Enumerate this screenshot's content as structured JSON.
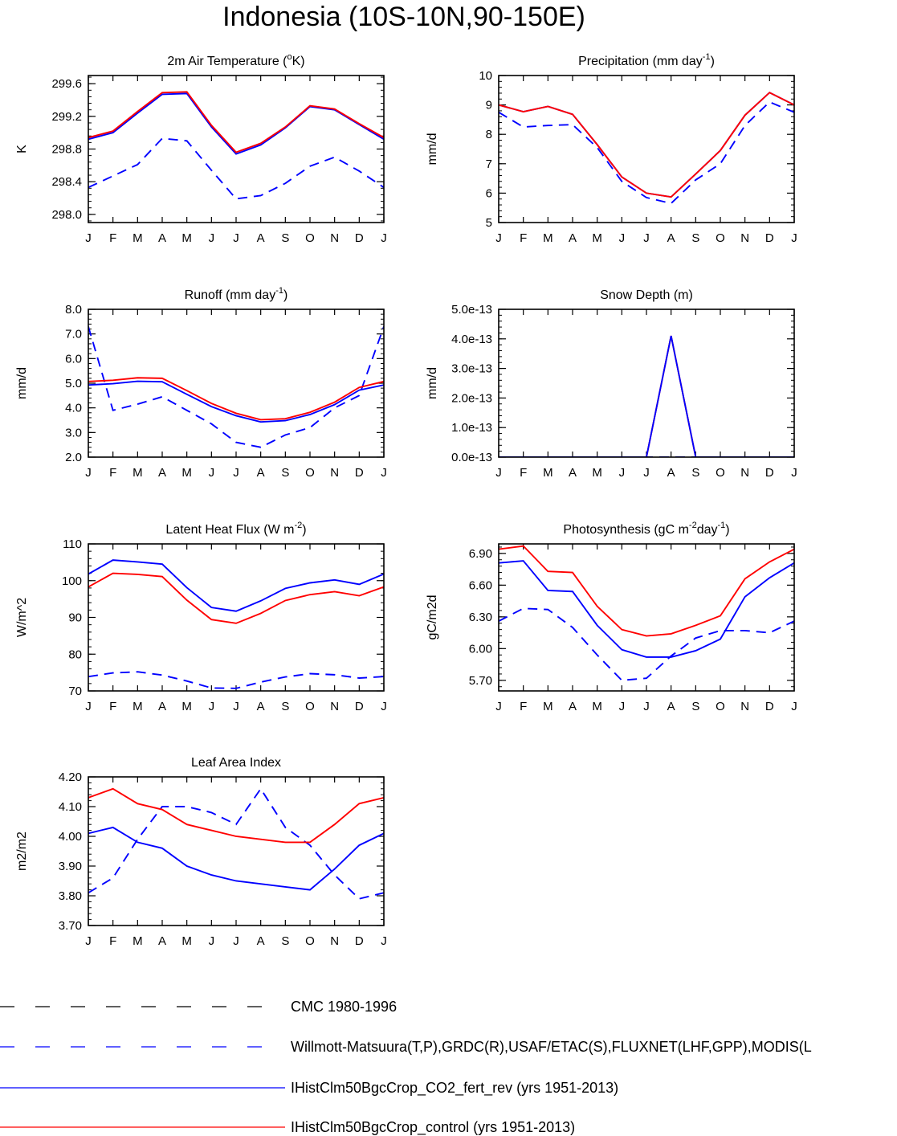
{
  "title": "Indonesia (10S-10N,90-150E)",
  "months": [
    "J",
    "F",
    "M",
    "A",
    "M",
    "J",
    "J",
    "A",
    "S",
    "O",
    "N",
    "D",
    "J"
  ],
  "colors": {
    "black": "#000000",
    "blue": "#0000ff",
    "red": "#ff0000"
  },
  "legend": [
    {
      "label": "CMC 1980-1996",
      "color": "#000000",
      "dashed": true
    },
    {
      "label": "Willmott-Matsuura(T,P),GRDC(R),USAF/ETAC(S),FLUXNET(LHF,GPP),MODIS(L",
      "color": "#0000ff",
      "dashed": true
    },
    {
      "label": "IHistClm50BgcCrop_CO2_fert_rev (yrs 1951-2013)",
      "color": "#0000ff",
      "dashed": false
    },
    {
      "label": "IHistClm50BgcCrop_control (yrs 1951-2013)",
      "color": "#ff0000",
      "dashed": false
    }
  ],
  "chart_data": [
    {
      "type": "line",
      "title_main": "2m Air Temperature (",
      "title_sup": "o",
      "title_tail": "K)",
      "ylabel": "K",
      "ylim": [
        297.9,
        299.7
      ],
      "yticks": [
        "298.0",
        "298.4",
        "298.8",
        "299.2",
        "299.6"
      ],
      "x": [
        "J",
        "F",
        "M",
        "A",
        "M",
        "J",
        "J",
        "A",
        "S",
        "O",
        "N",
        "D",
        "J"
      ],
      "series": [
        {
          "color": "#0000ff",
          "dashed": true,
          "values": [
            298.33,
            298.47,
            298.61,
            298.93,
            298.9,
            298.54,
            298.19,
            298.23,
            298.38,
            298.59,
            298.7,
            298.53,
            298.33
          ]
        },
        {
          "color": "#0000ff",
          "dashed": false,
          "values": [
            298.92,
            299.0,
            299.24,
            299.47,
            299.48,
            299.07,
            298.74,
            298.85,
            299.06,
            299.32,
            299.28,
            299.1,
            298.92
          ]
        },
        {
          "color": "#ff0000",
          "dashed": false,
          "values": [
            298.94,
            299.02,
            299.26,
            299.49,
            299.5,
            299.09,
            298.76,
            298.87,
            299.07,
            299.33,
            299.29,
            299.11,
            298.94
          ]
        }
      ]
    },
    {
      "type": "line",
      "title_main": "Precipitation (mm day",
      "title_sup": "-1",
      "title_tail": ")",
      "ylabel": "mm/d",
      "ylim": [
        5,
        10
      ],
      "yticks": [
        "5",
        "6",
        "7",
        "8",
        "9",
        "10"
      ],
      "x": [
        "J",
        "F",
        "M",
        "A",
        "M",
        "J",
        "J",
        "A",
        "S",
        "O",
        "N",
        "D",
        "J"
      ],
      "series": [
        {
          "color": "#0000ff",
          "dashed": true,
          "values": [
            8.75,
            8.25,
            8.3,
            8.33,
            7.55,
            6.4,
            5.85,
            5.65,
            6.45,
            7.0,
            8.3,
            9.1,
            8.75
          ]
        },
        {
          "color": "#0000ff",
          "dashed": false,
          "values": [
            9.0,
            8.77,
            8.95,
            8.68,
            7.65,
            6.55,
            6.0,
            5.87,
            6.65,
            7.45,
            8.65,
            9.42,
            9.0
          ]
        },
        {
          "color": "#ff0000",
          "dashed": false,
          "values": [
            9.0,
            8.77,
            8.95,
            8.68,
            7.65,
            6.55,
            6.0,
            5.87,
            6.65,
            7.45,
            8.65,
            9.42,
            9.0
          ]
        }
      ]
    },
    {
      "type": "line",
      "title_main": "Runoff (mm day",
      "title_sup": "-1",
      "title_tail": ")",
      "ylabel": "mm/d",
      "ylim": [
        2,
        8
      ],
      "yticks": [
        "2.0",
        "3.0",
        "4.0",
        "5.0",
        "6.0",
        "7.0",
        "8.0"
      ],
      "x": [
        "J",
        "F",
        "M",
        "A",
        "M",
        "J",
        "J",
        "A",
        "S",
        "O",
        "N",
        "D",
        "J"
      ],
      "series": [
        {
          "color": "#0000ff",
          "dashed": true,
          "values": [
            7.3,
            3.9,
            4.15,
            4.45,
            3.9,
            3.35,
            2.6,
            2.4,
            2.9,
            3.2,
            4.0,
            4.5,
            7.3
          ]
        },
        {
          "color": "#0000ff",
          "dashed": false,
          "values": [
            4.93,
            4.98,
            5.08,
            5.06,
            4.55,
            4.05,
            3.68,
            3.43,
            3.48,
            3.73,
            4.13,
            4.72,
            4.93
          ]
        },
        {
          "color": "#ff0000",
          "dashed": false,
          "values": [
            5.07,
            5.12,
            5.22,
            5.2,
            4.7,
            4.18,
            3.78,
            3.52,
            3.56,
            3.82,
            4.23,
            4.83,
            5.07
          ]
        }
      ]
    },
    {
      "type": "line",
      "title_main": "Snow Depth (m)",
      "title_sup": "",
      "title_tail": "",
      "ylabel": "mm/d",
      "ylim": [
        0,
        5
      ],
      "yticks": [
        "0.0e-13",
        "1.0e-13",
        "2.0e-13",
        "3.0e-13",
        "4.0e-13",
        "5.0e-13"
      ],
      "x": [
        "J",
        "F",
        "M",
        "A",
        "M",
        "J",
        "J",
        "A",
        "S",
        "O",
        "N",
        "D",
        "J"
      ],
      "series": [
        {
          "color": "#0000ff",
          "dashed": true,
          "values": [
            0,
            0,
            0,
            0,
            0,
            0,
            0,
            0,
            0,
            0,
            0,
            0,
            0
          ]
        },
        {
          "color": "#ff0000",
          "dashed": false,
          "values": [
            0,
            0,
            0,
            0,
            0,
            0,
            0,
            4.1,
            0,
            0,
            0,
            0,
            0
          ]
        },
        {
          "color": "#0000ff",
          "dashed": false,
          "values": [
            0,
            0,
            0,
            0,
            0,
            0,
            0,
            4.1,
            0,
            0,
            0,
            0,
            0
          ]
        }
      ]
    },
    {
      "type": "line",
      "title_main": "Latent Heat Flux (W m",
      "title_sup": "-2",
      "title_tail": ")",
      "ylabel": "W/m^2",
      "ylim": [
        70,
        110
      ],
      "yticks": [
        "70",
        "80",
        "90",
        "100",
        "110"
      ],
      "x": [
        "J",
        "F",
        "M",
        "A",
        "M",
        "J",
        "J",
        "A",
        "S",
        "O",
        "N",
        "D",
        "J"
      ],
      "series": [
        {
          "color": "#0000ff",
          "dashed": true,
          "values": [
            73.9,
            74.9,
            75.2,
            74.3,
            72.7,
            70.8,
            70.7,
            72.4,
            73.8,
            74.7,
            74.4,
            73.5,
            73.9
          ]
        },
        {
          "color": "#0000ff",
          "dashed": false,
          "values": [
            101.8,
            105.6,
            105.1,
            104.5,
            98.1,
            92.7,
            91.7,
            94.5,
            97.9,
            99.4,
            100.2,
            99.0,
            101.8
          ]
        },
        {
          "color": "#ff0000",
          "dashed": false,
          "values": [
            98.3,
            102.0,
            101.7,
            101.1,
            94.7,
            89.4,
            88.4,
            91.1,
            94.6,
            96.2,
            97.0,
            95.9,
            98.3
          ]
        }
      ]
    },
    {
      "type": "line",
      "title_main": "Photosynthesis (gC m",
      "title_sup": "-2",
      "title_tail": "day",
      "title_sup2": "-1",
      "title_tail2": ")",
      "ylabel": "gC/m2d",
      "ylim": [
        5.6,
        6.99
      ],
      "yticks": [
        "5.70",
        "6.00",
        "6.30",
        "6.60",
        "6.90"
      ],
      "x": [
        "J",
        "F",
        "M",
        "A",
        "M",
        "J",
        "J",
        "A",
        "S",
        "O",
        "N",
        "D",
        "J"
      ],
      "series": [
        {
          "color": "#0000ff",
          "dashed": true,
          "values": [
            6.26,
            6.38,
            6.37,
            6.2,
            5.94,
            5.7,
            5.72,
            5.93,
            6.1,
            6.17,
            6.17,
            6.15,
            6.26
          ]
        },
        {
          "color": "#0000ff",
          "dashed": false,
          "values": [
            6.81,
            6.83,
            6.55,
            6.54,
            6.22,
            5.99,
            5.92,
            5.92,
            5.98,
            6.09,
            6.49,
            6.67,
            6.81
          ]
        },
        {
          "color": "#ff0000",
          "dashed": false,
          "values": [
            6.94,
            6.97,
            6.73,
            6.72,
            6.4,
            6.18,
            6.12,
            6.14,
            6.22,
            6.31,
            6.66,
            6.82,
            6.94
          ]
        }
      ]
    },
    {
      "type": "line",
      "title_main": "Leaf Area Index",
      "title_sup": "",
      "title_tail": "",
      "ylabel": "m2/m2",
      "ylim": [
        3.7,
        4.2
      ],
      "yticks": [
        "3.70",
        "3.80",
        "3.90",
        "4.00",
        "4.10",
        "4.20"
      ],
      "x": [
        "J",
        "F",
        "M",
        "A",
        "M",
        "J",
        "J",
        "A",
        "S",
        "O",
        "N",
        "D",
        "J"
      ],
      "series": [
        {
          "color": "#0000ff",
          "dashed": true,
          "values": [
            3.81,
            3.86,
            3.99,
            4.1,
            4.1,
            4.08,
            4.04,
            4.16,
            4.03,
            3.97,
            3.87,
            3.79,
            3.81
          ]
        },
        {
          "color": "#0000ff",
          "dashed": false,
          "values": [
            4.01,
            4.03,
            3.98,
            3.96,
            3.9,
            3.87,
            3.85,
            3.84,
            3.83,
            3.82,
            3.89,
            3.97,
            4.01
          ]
        },
        {
          "color": "#ff0000",
          "dashed": false,
          "values": [
            4.13,
            4.16,
            4.11,
            4.09,
            4.04,
            4.02,
            4.0,
            3.99,
            3.98,
            3.98,
            4.04,
            4.11,
            4.13
          ]
        }
      ]
    }
  ]
}
